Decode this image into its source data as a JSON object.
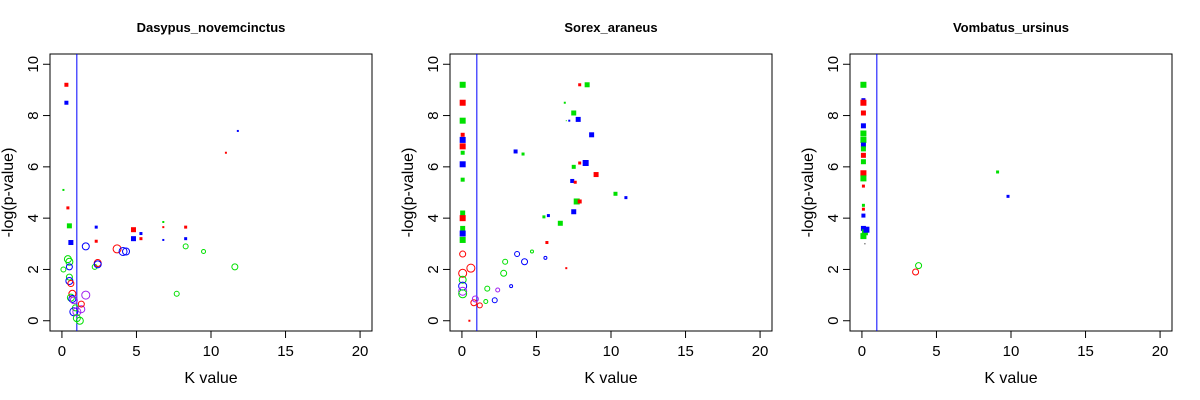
{
  "chart_data": [
    {
      "type": "scatter",
      "title": "Dasypus_novemcinctus",
      "xlabel": "K value",
      "ylabel": "-log(p-value)",
      "xlim": [
        0,
        20
      ],
      "ylim": [
        0,
        10
      ],
      "xticks": [
        "0",
        "5",
        "10",
        "15",
        "20"
      ],
      "yticks": [
        "0",
        "2",
        "4",
        "6",
        "8",
        "10"
      ],
      "vline": 1,
      "squares": [
        {
          "x": 0.3,
          "y": 9.2,
          "c": "red",
          "s": 4
        },
        {
          "x": 0.3,
          "y": 8.5,
          "c": "blue",
          "s": 4
        },
        {
          "x": 0.1,
          "y": 5.1,
          "c": "green",
          "s": 2
        },
        {
          "x": 0.4,
          "y": 4.4,
          "c": "red",
          "s": 3
        },
        {
          "x": 0.5,
          "y": 3.7,
          "c": "green",
          "s": 5
        },
        {
          "x": 0.6,
          "y": 3.05,
          "c": "blue",
          "s": 5
        },
        {
          "x": 2.3,
          "y": 3.65,
          "c": "blue",
          "s": 3
        },
        {
          "x": 2.3,
          "y": 3.1,
          "c": "red",
          "s": 3
        },
        {
          "x": 4.8,
          "y": 3.55,
          "c": "red",
          "s": 5
        },
        {
          "x": 4.8,
          "y": 3.2,
          "c": "blue",
          "s": 5
        },
        {
          "x": 5.3,
          "y": 3.4,
          "c": "blue",
          "s": 3
        },
        {
          "x": 5.3,
          "y": 3.2,
          "c": "red",
          "s": 3
        },
        {
          "x": 6.8,
          "y": 3.85,
          "c": "green",
          "s": 2
        },
        {
          "x": 6.8,
          "y": 3.65,
          "c": "red",
          "s": 2
        },
        {
          "x": 6.8,
          "y": 3.15,
          "c": "blue",
          "s": 2
        },
        {
          "x": 8.3,
          "y": 3.65,
          "c": "red",
          "s": 3
        },
        {
          "x": 8.3,
          "y": 3.2,
          "c": "blue",
          "s": 3
        },
        {
          "x": 11.0,
          "y": 6.55,
          "c": "red",
          "s": 2
        },
        {
          "x": 11.8,
          "y": 7.4,
          "c": "blue",
          "s": 2
        }
      ],
      "circles": [
        {
          "x": 0.1,
          "y": 2.0,
          "c": "green",
          "r": 2.5
        },
        {
          "x": 0.4,
          "y": 2.4,
          "c": "green",
          "r": 3.5
        },
        {
          "x": 0.5,
          "y": 2.3,
          "c": "green",
          "r": 3.5
        },
        {
          "x": 0.5,
          "y": 2.1,
          "c": "blue",
          "r": 3
        },
        {
          "x": 0.5,
          "y": 1.7,
          "c": "green",
          "r": 3
        },
        {
          "x": 0.5,
          "y": 1.55,
          "c": "blue",
          "r": 3.5
        },
        {
          "x": 0.6,
          "y": 1.45,
          "c": "red",
          "r": 3
        },
        {
          "x": 0.7,
          "y": 1.05,
          "c": "red",
          "r": 3.5
        },
        {
          "x": 0.6,
          "y": 0.9,
          "c": "green",
          "r": 3.5
        },
        {
          "x": 0.7,
          "y": 0.85,
          "c": "blue",
          "r": 3.5
        },
        {
          "x": 0.8,
          "y": 0.8,
          "c": "purple",
          "r": 3.5
        },
        {
          "x": 0.9,
          "y": 0.5,
          "c": "green",
          "r": 3
        },
        {
          "x": 0.8,
          "y": 0.35,
          "c": "blue",
          "r": 4
        },
        {
          "x": 1.0,
          "y": 0.35,
          "c": "purple",
          "r": 4
        },
        {
          "x": 1.0,
          "y": 0.1,
          "c": "green",
          "r": 3.5
        },
        {
          "x": 1.2,
          "y": 0.0,
          "c": "green",
          "r": 3.5
        },
        {
          "x": 1.3,
          "y": 0.45,
          "c": "purple",
          "r": 3.5
        },
        {
          "x": 1.3,
          "y": 0.65,
          "c": "red",
          "r": 3
        },
        {
          "x": 1.6,
          "y": 1.0,
          "c": "purple",
          "r": 4
        },
        {
          "x": 1.6,
          "y": 2.9,
          "c": "blue",
          "r": 3.5
        },
        {
          "x": 2.2,
          "y": 2.1,
          "c": "green",
          "r": 2.5
        },
        {
          "x": 2.4,
          "y": 2.25,
          "c": "red",
          "r": 3.5
        },
        {
          "x": 2.4,
          "y": 2.2,
          "c": "blue",
          "r": 3.5
        },
        {
          "x": 3.7,
          "y": 2.8,
          "c": "red",
          "r": 4
        },
        {
          "x": 4.1,
          "y": 2.7,
          "c": "blue",
          "r": 4
        },
        {
          "x": 4.3,
          "y": 2.7,
          "c": "blue",
          "r": 3.5
        },
        {
          "x": 7.7,
          "y": 1.05,
          "c": "green",
          "r": 2.5
        },
        {
          "x": 8.3,
          "y": 2.9,
          "c": "green",
          "r": 2.5
        },
        {
          "x": 9.5,
          "y": 2.7,
          "c": "green",
          "r": 2
        },
        {
          "x": 11.6,
          "y": 2.1,
          "c": "green",
          "r": 3
        }
      ]
    },
    {
      "type": "scatter",
      "title": "Sorex_araneus",
      "xlabel": "K value",
      "ylabel": "-log(p-value)",
      "xlim": [
        0,
        20
      ],
      "ylim": [
        0,
        10
      ],
      "xticks": [
        "0",
        "5",
        "10",
        "15",
        "20"
      ],
      "yticks": [
        "0",
        "2",
        "4",
        "6",
        "8",
        "10"
      ],
      "vline": 1,
      "squares": [
        {
          "x": 0.05,
          "y": 9.2,
          "c": "green",
          "s": 6
        },
        {
          "x": 0.05,
          "y": 8.5,
          "c": "red",
          "s": 6
        },
        {
          "x": 0.05,
          "y": 7.8,
          "c": "green",
          "s": 6
        },
        {
          "x": 0.05,
          "y": 7.25,
          "c": "red",
          "s": 4
        },
        {
          "x": 0.05,
          "y": 7.05,
          "c": "blue",
          "s": 6
        },
        {
          "x": 0.05,
          "y": 6.8,
          "c": "red",
          "s": 6
        },
        {
          "x": 0.05,
          "y": 6.55,
          "c": "green",
          "s": 4
        },
        {
          "x": 0.05,
          "y": 6.1,
          "c": "blue",
          "s": 6
        },
        {
          "x": 0.05,
          "y": 5.5,
          "c": "green",
          "s": 4
        },
        {
          "x": 0.05,
          "y": 4.2,
          "c": "green",
          "s": 5
        },
        {
          "x": 0.05,
          "y": 4.0,
          "c": "red",
          "s": 6
        },
        {
          "x": 0.05,
          "y": 3.6,
          "c": "green",
          "s": 5
        },
        {
          "x": 0.05,
          "y": 3.4,
          "c": "blue",
          "s": 6
        },
        {
          "x": 0.05,
          "y": 3.15,
          "c": "green",
          "s": 6
        },
        {
          "x": 3.6,
          "y": 6.6,
          "c": "blue",
          "s": 4
        },
        {
          "x": 4.1,
          "y": 6.5,
          "c": "green",
          "s": 3
        },
        {
          "x": 5.5,
          "y": 4.05,
          "c": "green",
          "s": 3
        },
        {
          "x": 5.8,
          "y": 4.1,
          "c": "blue",
          "s": 3
        },
        {
          "x": 5.7,
          "y": 3.05,
          "c": "red",
          "s": 3
        },
        {
          "x": 6.6,
          "y": 3.8,
          "c": "green",
          "s": 5
        },
        {
          "x": 6.9,
          "y": 8.5,
          "c": "green",
          "s": 2
        },
        {
          "x": 7.2,
          "y": 7.8,
          "c": "blue",
          "s": 2
        },
        {
          "x": 7.0,
          "y": 7.8,
          "c": "green",
          "s": 1
        },
        {
          "x": 7.5,
          "y": 8.1,
          "c": "green",
          "s": 5
        },
        {
          "x": 7.8,
          "y": 7.85,
          "c": "blue",
          "s": 5
        },
        {
          "x": 7.9,
          "y": 9.2,
          "c": "red",
          "s": 3
        },
        {
          "x": 8.4,
          "y": 9.2,
          "c": "green",
          "s": 5
        },
        {
          "x": 7.5,
          "y": 6.0,
          "c": "green",
          "s": 4
        },
        {
          "x": 7.9,
          "y": 6.15,
          "c": "red",
          "s": 3
        },
        {
          "x": 8.3,
          "y": 6.15,
          "c": "blue",
          "s": 6
        },
        {
          "x": 8.7,
          "y": 7.25,
          "c": "blue",
          "s": 5
        },
        {
          "x": 7.4,
          "y": 5.45,
          "c": "blue",
          "s": 4
        },
        {
          "x": 7.6,
          "y": 5.4,
          "c": "red",
          "s": 3
        },
        {
          "x": 7.7,
          "y": 4.65,
          "c": "green",
          "s": 6
        },
        {
          "x": 7.9,
          "y": 4.65,
          "c": "red",
          "s": 4
        },
        {
          "x": 7.5,
          "y": 4.25,
          "c": "blue",
          "s": 5
        },
        {
          "x": 9.0,
          "y": 5.7,
          "c": "red",
          "s": 5
        },
        {
          "x": 10.3,
          "y": 4.95,
          "c": "green",
          "s": 4
        },
        {
          "x": 11.0,
          "y": 4.8,
          "c": "blue",
          "s": 3
        },
        {
          "x": 7.0,
          "y": 2.05,
          "c": "red",
          "s": 2
        },
        {
          "x": 0.5,
          "y": 0.0,
          "c": "red",
          "s": 2
        }
      ],
      "circles": [
        {
          "x": 0.05,
          "y": 2.6,
          "c": "red",
          "r": 3
        },
        {
          "x": 0.05,
          "y": 1.85,
          "c": "red",
          "r": 4
        },
        {
          "x": 0.05,
          "y": 1.6,
          "c": "green",
          "r": 3.5
        },
        {
          "x": 0.05,
          "y": 1.35,
          "c": "blue",
          "r": 4
        },
        {
          "x": 0.05,
          "y": 1.15,
          "c": "purple",
          "r": 4
        },
        {
          "x": 0.05,
          "y": 1.05,
          "c": "green",
          "r": 4
        },
        {
          "x": 0.6,
          "y": 2.05,
          "c": "red",
          "r": 4
        },
        {
          "x": 0.8,
          "y": 0.7,
          "c": "red",
          "r": 3
        },
        {
          "x": 0.9,
          "y": 0.85,
          "c": "purple",
          "r": 3
        },
        {
          "x": 1.2,
          "y": 0.6,
          "c": "red",
          "r": 2.5
        },
        {
          "x": 1.6,
          "y": 0.75,
          "c": "green",
          "r": 2
        },
        {
          "x": 1.7,
          "y": 1.25,
          "c": "green",
          "r": 2.5
        },
        {
          "x": 2.2,
          "y": 0.8,
          "c": "blue",
          "r": 2.5
        },
        {
          "x": 2.4,
          "y": 1.2,
          "c": "purple",
          "r": 2
        },
        {
          "x": 2.8,
          "y": 1.85,
          "c": "green",
          "r": 3
        },
        {
          "x": 2.9,
          "y": 2.3,
          "c": "green",
          "r": 2.5
        },
        {
          "x": 3.3,
          "y": 1.35,
          "c": "blue",
          "r": 1.5
        },
        {
          "x": 3.7,
          "y": 2.6,
          "c": "blue",
          "r": 2.5
        },
        {
          "x": 4.2,
          "y": 2.3,
          "c": "blue",
          "r": 3
        },
        {
          "x": 4.7,
          "y": 2.7,
          "c": "green",
          "r": 1.5
        },
        {
          "x": 5.6,
          "y": 2.45,
          "c": "blue",
          "r": 1.5
        }
      ]
    },
    {
      "type": "scatter",
      "title": "Vombatus_ursinus",
      "xlabel": "K value",
      "ylabel": "-log(p-value)",
      "xlim": [
        0,
        20
      ],
      "ylim": [
        0,
        10
      ],
      "xticks": [
        "0",
        "5",
        "10",
        "15",
        "20"
      ],
      "yticks": [
        "0",
        "2",
        "4",
        "6",
        "8",
        "10"
      ],
      "vline": 1,
      "squares": [
        {
          "x": 0.1,
          "y": 9.2,
          "c": "green",
          "s": 6
        },
        {
          "x": 0.1,
          "y": 8.6,
          "c": "blue",
          "s": 4
        },
        {
          "x": 0.1,
          "y": 8.5,
          "c": "red",
          "s": 6
        },
        {
          "x": 0.1,
          "y": 8.1,
          "c": "red",
          "s": 5
        },
        {
          "x": 0.1,
          "y": 7.6,
          "c": "blue",
          "s": 5
        },
        {
          "x": 0.1,
          "y": 7.3,
          "c": "green",
          "s": 6
        },
        {
          "x": 0.1,
          "y": 7.05,
          "c": "green",
          "s": 6
        },
        {
          "x": 0.1,
          "y": 6.85,
          "c": "blue",
          "s": 5
        },
        {
          "x": 0.1,
          "y": 6.7,
          "c": "green",
          "s": 5
        },
        {
          "x": 0.1,
          "y": 6.45,
          "c": "red",
          "s": 5
        },
        {
          "x": 0.1,
          "y": 6.2,
          "c": "green",
          "s": 5
        },
        {
          "x": 0.1,
          "y": 5.75,
          "c": "red",
          "s": 6
        },
        {
          "x": 0.1,
          "y": 5.55,
          "c": "green",
          "s": 6
        },
        {
          "x": 0.1,
          "y": 5.25,
          "c": "red",
          "s": 3
        },
        {
          "x": 0.1,
          "y": 4.5,
          "c": "green",
          "s": 3
        },
        {
          "x": 0.1,
          "y": 4.35,
          "c": "red",
          "s": 3
        },
        {
          "x": 0.1,
          "y": 4.1,
          "c": "blue",
          "s": 4
        },
        {
          "x": 0.1,
          "y": 3.6,
          "c": "blue",
          "s": 5
        },
        {
          "x": 0.2,
          "y": 3.45,
          "c": "green",
          "s": 6
        },
        {
          "x": 0.3,
          "y": 3.55,
          "c": "blue",
          "s": 6
        },
        {
          "x": 0.1,
          "y": 3.3,
          "c": "green",
          "s": 6
        },
        {
          "x": 0.2,
          "y": 3.0,
          "c": "black",
          "s": 1
        },
        {
          "x": 9.1,
          "y": 5.8,
          "c": "green",
          "s": 3
        },
        {
          "x": 9.8,
          "y": 4.85,
          "c": "blue",
          "s": 3
        }
      ],
      "circles": [
        {
          "x": 3.6,
          "y": 1.9,
          "c": "red",
          "r": 3
        },
        {
          "x": 3.8,
          "y": 2.15,
          "c": "green",
          "r": 3
        }
      ]
    }
  ]
}
